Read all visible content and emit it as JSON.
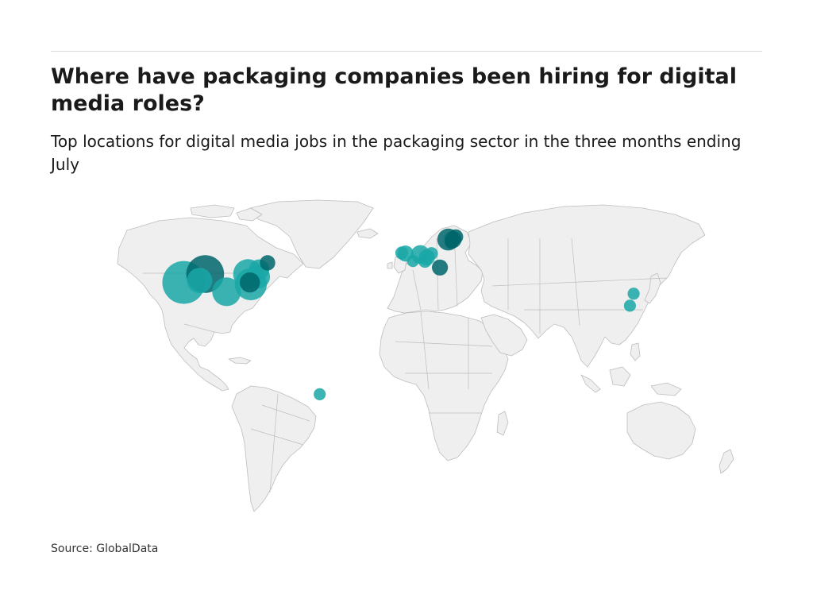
{
  "header": {
    "title": "Where have packaging companies been hiring for digital media roles?",
    "subtitle": "Top locations for digital media jobs in the packaging sector in the three months ending July"
  },
  "source": "Source: GlobalData",
  "colors": {
    "land": "#efefef",
    "border": "#bdbdbd",
    "bubble_light": "#1aa7a7",
    "bubble_dark": "#00666b"
  },
  "chart_data": {
    "type": "bubble-map",
    "projection": "equirectangular",
    "bubbles": [
      {
        "lon": -120.5,
        "lat": 37.0,
        "size": 1.0,
        "shade": "light"
      },
      {
        "lon": -109.0,
        "lat": 41.5,
        "size": 0.78,
        "shade": "dark"
      },
      {
        "lon": -112.0,
        "lat": 38.0,
        "size": 0.35,
        "shade": "light"
      },
      {
        "lon": -97.5,
        "lat": 32.0,
        "size": 0.45,
        "shade": "light"
      },
      {
        "lon": -86.0,
        "lat": 41.5,
        "size": 0.48,
        "shade": "light"
      },
      {
        "lon": -84.5,
        "lat": 36.0,
        "size": 0.56,
        "shade": "light"
      },
      {
        "lon": -80.5,
        "lat": 40.0,
        "size": 0.3,
        "shade": "light"
      },
      {
        "lon": -80.0,
        "lat": 44.0,
        "size": 0.22,
        "shade": "light"
      },
      {
        "lon": -75.5,
        "lat": 47.5,
        "size": 0.13,
        "shade": "dark"
      },
      {
        "lon": -85.0,
        "lat": 37.0,
        "size": 0.22,
        "shade": "dark"
      },
      {
        "lon": -1.5,
        "lat": 52.5,
        "size": 0.14,
        "shade": "light"
      },
      {
        "lon": -3.5,
        "lat": 52.8,
        "size": 0.09,
        "shade": "light"
      },
      {
        "lon": 6.5,
        "lat": 52.0,
        "size": 0.19,
        "shade": "light"
      },
      {
        "lon": 10.0,
        "lat": 50.5,
        "size": 0.14,
        "shade": "light"
      },
      {
        "lon": 12.5,
        "lat": 52.5,
        "size": 0.09,
        "shade": "light"
      },
      {
        "lon": 2.5,
        "lat": 48.5,
        "size": 0.08,
        "shade": "light"
      },
      {
        "lon": 9.0,
        "lat": 48.5,
        "size": 0.1,
        "shade": "light"
      },
      {
        "lon": 17.0,
        "lat": 45.0,
        "size": 0.14,
        "shade": "dark"
      },
      {
        "lon": 21.5,
        "lat": 60.0,
        "size": 0.26,
        "shade": "dark"
      },
      {
        "lon": 24.0,
        "lat": 60.0,
        "size": 0.16,
        "shade": "dark"
      },
      {
        "lon": 25.5,
        "lat": 61.5,
        "size": 0.12,
        "shade": "dark"
      },
      {
        "lon": 23.0,
        "lat": 58.5,
        "size": 0.09,
        "shade": "dark"
      },
      {
        "lon": 121.0,
        "lat": 31.0,
        "size": 0.08,
        "shade": "light"
      },
      {
        "lon": 119.0,
        "lat": 24.5,
        "size": 0.08,
        "shade": "light"
      },
      {
        "lon": -47.5,
        "lat": -23.0,
        "size": 0.08,
        "shade": "light"
      }
    ]
  }
}
